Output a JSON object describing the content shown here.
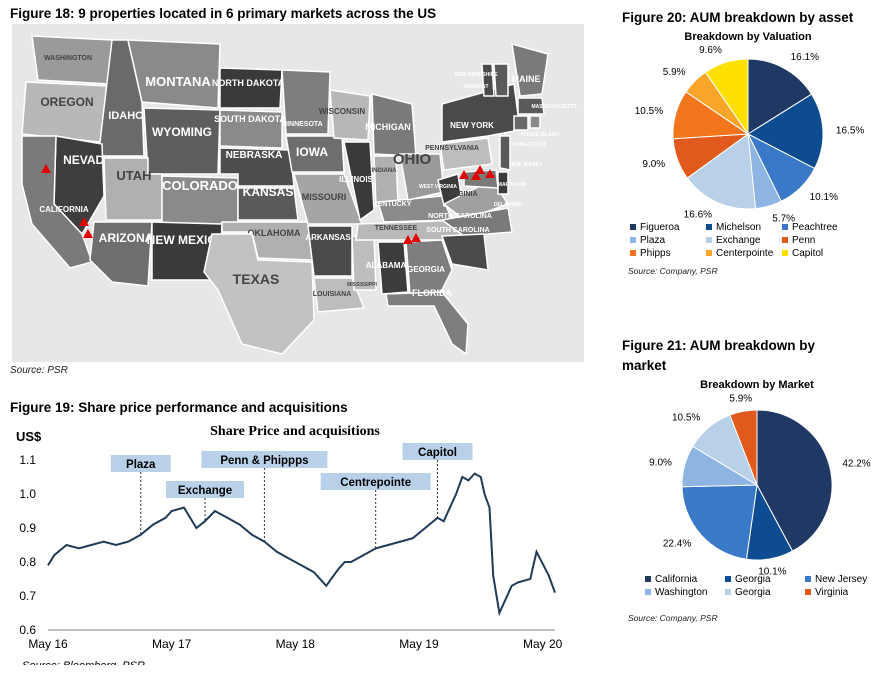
{
  "fig18": {
    "title": "Figure 18: 9 properties located in 6 primary markets across the US",
    "source": "Source: PSR",
    "states": [
      {
        "name": "WASHINGTON"
      },
      {
        "name": "OREGON"
      },
      {
        "name": "IDAHO"
      },
      {
        "name": "MONTANA"
      },
      {
        "name": "WYOMING"
      },
      {
        "name": "NEVADA"
      },
      {
        "name": "CALIFORNIA"
      },
      {
        "name": "UTAH"
      },
      {
        "name": "COLORADO"
      },
      {
        "name": "ARIZONA"
      },
      {
        "name": "NEW MEXICO"
      },
      {
        "name": "NORTH DAKOTA"
      },
      {
        "name": "SOUTH DAKOTA"
      },
      {
        "name": "NEBRASKA"
      },
      {
        "name": "KANSAS"
      },
      {
        "name": "OKLAHOMA"
      },
      {
        "name": "TEXAS"
      },
      {
        "name": "MINNESOTA"
      },
      {
        "name": "IOWA"
      },
      {
        "name": "MISSOURI"
      },
      {
        "name": "ARKANSAS"
      },
      {
        "name": "LOUISIANA"
      },
      {
        "name": "WISCONSIN"
      },
      {
        "name": "ILLINOIS"
      },
      {
        "name": "MISSISSIPPI"
      },
      {
        "name": "MICHIGAN"
      },
      {
        "name": "INDIANA"
      },
      {
        "name": "KENTUCKY"
      },
      {
        "name": "TENNESSEE"
      },
      {
        "name": "ALABAMA"
      },
      {
        "name": "OHIO"
      },
      {
        "name": "WEST VIRGINIA"
      },
      {
        "name": "VIRGINIA"
      },
      {
        "name": "NORTH CAROLINA"
      },
      {
        "name": "SOUTH CAROLINA"
      },
      {
        "name": "GEORGIA"
      },
      {
        "name": "FLORIDA"
      },
      {
        "name": "PENNSYLVANIA"
      },
      {
        "name": "NEW YORK"
      },
      {
        "name": "MAINE"
      },
      {
        "name": "VERMONT"
      },
      {
        "name": "NEW HAMPSHIRE"
      },
      {
        "name": "MASSACHUSETTS"
      },
      {
        "name": "CONNECTICUT"
      },
      {
        "name": "RHODE ISLAND"
      },
      {
        "name": "NEW JERSEY"
      },
      {
        "name": "DELAWARE"
      },
      {
        "name": "MARYLAND"
      }
    ],
    "markers_count": 9
  },
  "fig19": {
    "title": "Figure 19: Share price performance and acquisitions",
    "source": "Source: Bloomberg, PSR",
    "chart_data": {
      "type": "line",
      "title": "Share Price and acquisitions",
      "ylabel": "US$",
      "ylim": [
        0.6,
        1.1
      ],
      "yticks": [
        "0.6",
        "0.7",
        "0.8",
        "0.9",
        "1.0",
        "1.1"
      ],
      "xticks": [
        "May 16",
        "May 17",
        "May 18",
        "May 19",
        "May 20"
      ],
      "series": [
        {
          "x": [
            2016.35,
            2016.4,
            2016.5,
            2016.6,
            2016.7,
            2016.8,
            2016.9,
            2017.0,
            2017.1,
            2017.2,
            2017.3,
            2017.35,
            2017.45,
            2017.55,
            2017.62,
            2017.7,
            2017.8,
            2017.9,
            2018.0,
            2018.1,
            2018.2,
            2018.3,
            2018.4,
            2018.5,
            2018.6,
            2018.7,
            2018.75,
            2018.8,
            2018.9,
            2019.0,
            2019.1,
            2019.2,
            2019.3,
            2019.4,
            2019.5,
            2019.55,
            2019.6,
            2019.65,
            2019.7,
            2019.75,
            2019.8,
            2019.85,
            2019.88,
            2019.92,
            2019.95,
            2020.0,
            2020.1,
            2020.15,
            2020.25,
            2020.3,
            2020.4,
            2020.45
          ],
          "values": [
            0.79,
            0.82,
            0.85,
            0.84,
            0.85,
            0.86,
            0.85,
            0.86,
            0.88,
            0.91,
            0.93,
            0.95,
            0.96,
            0.9,
            0.92,
            0.95,
            0.93,
            0.91,
            0.88,
            0.86,
            0.83,
            0.81,
            0.79,
            0.77,
            0.73,
            0.78,
            0.8,
            0.8,
            0.82,
            0.84,
            0.85,
            0.86,
            0.87,
            0.9,
            0.93,
            0.92,
            0.96,
            1.0,
            1.05,
            1.04,
            1.06,
            1.05,
            1.0,
            0.96,
            0.76,
            0.65,
            0.73,
            0.74,
            0.75,
            0.83,
            0.76,
            0.71
          ]
        }
      ],
      "annotations": [
        {
          "label": "Plaza",
          "x": 2017.1
        },
        {
          "label": "Exchange",
          "x": 2017.62
        },
        {
          "label": "Penn & Phippps",
          "x": 2018.1
        },
        {
          "label": "Centrepointe",
          "x": 2019.0
        },
        {
          "label": "Capitol",
          "x": 2019.5
        }
      ]
    }
  },
  "fig20": {
    "title": "Figure 20: AUM breakdown by asset",
    "source": "Source: Company, PSR",
    "chart_data": {
      "type": "pie",
      "title": "Breakdown by Valuation",
      "categories": [
        "Figueroa",
        "Michelson",
        "Peachtree",
        "Plaza",
        "Exchange",
        "Penn",
        "Phipps",
        "Centerpointe",
        "Capitol"
      ],
      "values": [
        16.1,
        16.5,
        10.1,
        5.7,
        16.6,
        9.0,
        10.5,
        5.9,
        9.6
      ],
      "value_labels": [
        "16.1%",
        "16.5%",
        "10.1%",
        "5.7%",
        "16.6%",
        "9.0%",
        "10.5%",
        "5.9%",
        "9.6%"
      ],
      "colors": [
        "#1f3864",
        "#0e4c92",
        "#3a78c8",
        "#8db4e2",
        "#b8d0e8",
        "#e05a1e",
        "#f4761c",
        "#f8a52a",
        "#fde000"
      ],
      "legend_position": "bottom"
    }
  },
  "fig21": {
    "title": "Figure 21: AUM breakdown by market",
    "source": "Source: Company, PSR",
    "chart_data": {
      "type": "pie",
      "title": "Breakdown by Market",
      "categories": [
        "California",
        "Georgia",
        "New Jersey",
        "Washington",
        "Georgia",
        "Virginia"
      ],
      "values": [
        42.2,
        10.1,
        22.4,
        9.0,
        10.5,
        5.9
      ],
      "value_labels": [
        "42.2%",
        "10.1%",
        "22.4%",
        "9.0%",
        "10.5%",
        "5.9%"
      ],
      "colors": [
        "#1f3864",
        "#0e4c92",
        "#3a78c8",
        "#8db4e2",
        "#b8d0e8",
        "#e05a1e"
      ],
      "legend_position": "bottom"
    }
  }
}
